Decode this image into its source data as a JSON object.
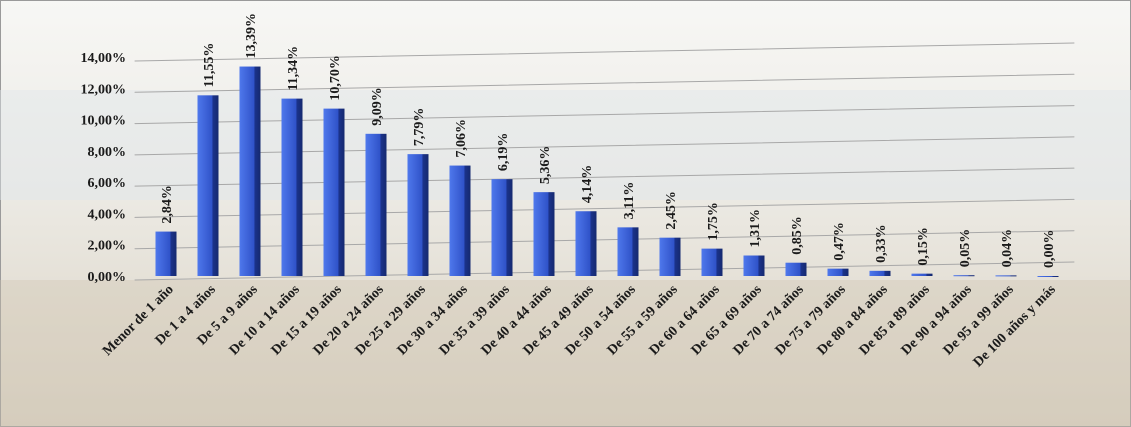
{
  "chart_data": {
    "type": "bar",
    "categories": [
      "Menor de 1 año",
      "De 1 a 4 años",
      "De 5 a 9 años",
      "De 10 a 14 años",
      "De 15 a 19 años",
      "De 20 a 24 años",
      "De 25 a 29 años",
      "De 30 a 34 años",
      "De 35 a 39 años",
      "De 40 a 44 años",
      "De 45 a 49 años",
      "De 50 a 54 años",
      "De 55 a 59 años",
      "De 60 a 64 años",
      "De 65 a 69 años",
      "De 70 a 74 años",
      "De 75 a 79 años",
      "De 80 a 84 años",
      "De 85 a 89 años",
      "De 90 a 94 años",
      "De 95 a 99 años",
      "De 100 años y más"
    ],
    "values": [
      2.84,
      11.55,
      13.39,
      11.34,
      10.7,
      9.09,
      7.79,
      7.06,
      6.19,
      5.36,
      4.14,
      3.11,
      2.45,
      1.75,
      1.31,
      0.85,
      0.47,
      0.33,
      0.15,
      0.05,
      0.04,
      0.0
    ],
    "value_labels": [
      "2,84%",
      "11,55%",
      "13,39%",
      "11,34%",
      "10,70%",
      "9,09%",
      "7,79%",
      "7,06%",
      "6,19%",
      "5,36%",
      "4,14%",
      "3,11%",
      "2,45%",
      "1,75%",
      "1,31%",
      "0,85%",
      "0,47%",
      "0,33%",
      "0,15%",
      "0,05%",
      "0,04%",
      "0,00%"
    ],
    "color": "#2f52c8",
    "ylim": [
      0,
      14
    ],
    "yticks": [
      {
        "value": 0,
        "label": "0,00%"
      },
      {
        "value": 2,
        "label": "2,00%"
      },
      {
        "value": 4,
        "label": "4,00%"
      },
      {
        "value": 6,
        "label": "6,00%"
      },
      {
        "value": 8,
        "label": "8,00%"
      },
      {
        "value": 10,
        "label": "10,00%"
      },
      {
        "value": 12,
        "label": "12,00%"
      },
      {
        "value": 14,
        "label": "14,00%"
      }
    ],
    "grid": true
  }
}
